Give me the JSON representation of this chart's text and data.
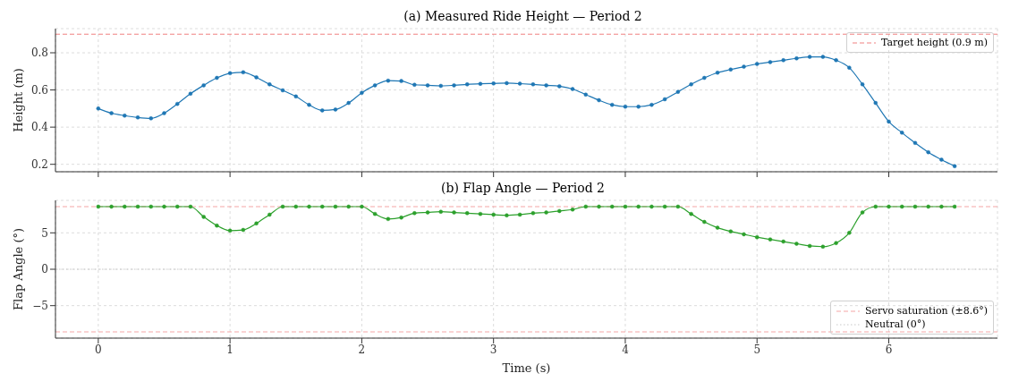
{
  "chart_data": [
    {
      "type": "line",
      "title": "(a)  Measured Ride Height — Period 2",
      "ylabel": "Height (m)",
      "x": [
        0,
        0.1,
        0.2,
        0.3,
        0.4,
        0.5,
        0.6,
        0.7,
        0.8,
        0.9,
        1.0,
        1.1,
        1.2,
        1.3,
        1.4,
        1.5,
        1.6,
        1.7,
        1.8,
        1.9,
        2.0,
        2.1,
        2.2,
        2.3,
        2.4,
        2.5,
        2.6,
        2.7,
        2.8,
        2.9,
        3.0,
        3.1,
        3.2,
        3.3,
        3.4,
        3.5,
        3.6,
        3.7,
        3.8,
        3.9,
        4.0,
        4.1,
        4.2,
        4.3,
        4.4,
        4.5,
        4.6,
        4.7,
        4.8,
        4.9,
        5.0,
        5.1,
        5.2,
        5.3,
        5.4,
        5.5,
        5.6,
        5.7,
        5.8,
        5.9,
        6.0,
        6.1,
        6.2,
        6.3,
        6.4,
        6.5
      ],
      "series": [
        {
          "color": "#1f77b4",
          "values": [
            0.5,
            0.475,
            0.462,
            0.452,
            0.447,
            0.475,
            0.525,
            0.58,
            0.625,
            0.665,
            0.69,
            0.695,
            0.668,
            0.63,
            0.598,
            0.565,
            0.52,
            0.49,
            0.495,
            0.53,
            0.585,
            0.625,
            0.65,
            0.648,
            0.628,
            0.625,
            0.622,
            0.625,
            0.63,
            0.633,
            0.635,
            0.637,
            0.634,
            0.63,
            0.625,
            0.62,
            0.605,
            0.575,
            0.545,
            0.52,
            0.51,
            0.51,
            0.52,
            0.55,
            0.59,
            0.63,
            0.665,
            0.693,
            0.71,
            0.725,
            0.74,
            0.75,
            0.76,
            0.77,
            0.778,
            0.778,
            0.76,
            0.72,
            0.63,
            0.53,
            0.43,
            0.37,
            0.315,
            0.265,
            0.225,
            0.19
          ]
        }
      ],
      "xlim": [
        -0.325,
        6.825
      ],
      "xticks": [
        0,
        1,
        2,
        3,
        4,
        5,
        6
      ],
      "ylim": [
        0.16,
        0.93
      ],
      "yticks": [
        0.2,
        0.4,
        0.6,
        0.8
      ],
      "tick_labels": "y",
      "grid": true,
      "legend": "top right",
      "marker": "circle",
      "ref_lines": [
        {
          "axis": "y",
          "value": 0.9,
          "label": "Target height (0.9 m)",
          "color": "#f08080",
          "line_style": "dashed"
        }
      ]
    },
    {
      "type": "line",
      "title": "(b)  Flap Angle — Period 2",
      "xlabel": "Time (s)",
      "ylabel": "Flap Angle (°)",
      "x": [
        0,
        0.1,
        0.2,
        0.3,
        0.4,
        0.5,
        0.6,
        0.7,
        0.8,
        0.9,
        1.0,
        1.1,
        1.2,
        1.3,
        1.4,
        1.5,
        1.6,
        1.7,
        1.8,
        1.9,
        2.0,
        2.1,
        2.2,
        2.3,
        2.4,
        2.5,
        2.6,
        2.7,
        2.8,
        2.9,
        3.0,
        3.1,
        3.2,
        3.3,
        3.4,
        3.5,
        3.6,
        3.7,
        3.8,
        3.9,
        4.0,
        4.1,
        4.2,
        4.3,
        4.4,
        4.5,
        4.6,
        4.7,
        4.8,
        4.9,
        5.0,
        5.1,
        5.2,
        5.3,
        5.4,
        5.5,
        5.6,
        5.7,
        5.8,
        5.9,
        6.0,
        6.1,
        6.2,
        6.3,
        6.4,
        6.5
      ],
      "series": [
        {
          "color": "#2ca02c",
          "values": [
            8.6,
            8.6,
            8.6,
            8.6,
            8.6,
            8.6,
            8.6,
            8.6,
            7.2,
            6.0,
            5.3,
            5.4,
            6.3,
            7.5,
            8.6,
            8.6,
            8.6,
            8.6,
            8.6,
            8.6,
            8.6,
            7.6,
            6.9,
            7.1,
            7.7,
            7.8,
            7.9,
            7.8,
            7.7,
            7.6,
            7.5,
            7.4,
            7.5,
            7.7,
            7.8,
            8.0,
            8.2,
            8.6,
            8.6,
            8.6,
            8.6,
            8.6,
            8.6,
            8.6,
            8.6,
            7.6,
            6.5,
            5.7,
            5.2,
            4.8,
            4.4,
            4.1,
            3.8,
            3.5,
            3.2,
            3.1,
            3.6,
            5.0,
            7.8,
            8.6,
            8.6,
            8.6,
            8.6,
            8.6,
            8.6,
            8.6
          ]
        }
      ],
      "xlim": [
        -0.325,
        6.825
      ],
      "xticks": [
        0,
        1,
        2,
        3,
        4,
        5,
        6
      ],
      "ylim": [
        -9.46,
        9.46
      ],
      "yticks": [
        -5,
        0,
        5
      ],
      "grid": true,
      "legend": "bottom right",
      "marker": "circle",
      "ref_lines": [
        {
          "axis": "y",
          "value": 8.6,
          "label": "Servo saturation (±8.6°)",
          "color": "#f4a6a6",
          "line_style": "dashed"
        },
        {
          "axis": "y",
          "value": -8.6,
          "label": null,
          "color": "#f4a6a6",
          "line_style": "dashed"
        },
        {
          "axis": "y",
          "value": 0,
          "label": "Neutral (0°)",
          "color": "#c8c8c8",
          "line_style": "dotted"
        }
      ]
    }
  ]
}
